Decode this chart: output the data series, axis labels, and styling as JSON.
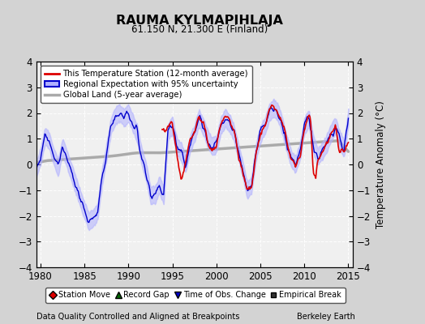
{
  "title": "RAUMA KYLMAPIHLAJA",
  "subtitle": "61.150 N, 21.300 E (Finland)",
  "xlabel_bottom": "Data Quality Controlled and Aligned at Breakpoints",
  "xlabel_right": "Berkeley Earth",
  "ylabel": "Temperature Anomaly (°C)",
  "xlim": [
    1979.5,
    2015.5
  ],
  "ylim": [
    -4,
    4
  ],
  "yticks": [
    -4,
    -3,
    -2,
    -1,
    0,
    1,
    2,
    3,
    4
  ],
  "xticks": [
    1980,
    1985,
    1990,
    1995,
    2000,
    2005,
    2010,
    2015
  ],
  "bg_color": "#d3d3d3",
  "plot_bg_color": "#f0f0f0",
  "grid_color": "#ffffff",
  "station_color": "#dd0000",
  "regional_color": "#0000cc",
  "regional_fill_color": "#b0b0ff",
  "global_land_color": "#aaaaaa",
  "legend1": [
    {
      "label": "This Temperature Station (12-month average)",
      "color": "#dd0000",
      "lw": 2
    },
    {
      "label": "Regional Expectation with 95% uncertainty",
      "color": "#0000cc",
      "lw": 2,
      "fill": "#b0b0ff"
    },
    {
      "label": "Global Land (5-year average)",
      "color": "#aaaaaa",
      "lw": 2
    }
  ],
  "legend2": [
    {
      "label": "Station Move",
      "marker": "D",
      "color": "#dd0000"
    },
    {
      "label": "Record Gap",
      "marker": "^",
      "color": "#006600"
    },
    {
      "label": "Time of Obs. Change",
      "marker": "v",
      "color": "#0000cc"
    },
    {
      "label": "Empirical Break",
      "marker": "s",
      "color": "#333333"
    }
  ]
}
